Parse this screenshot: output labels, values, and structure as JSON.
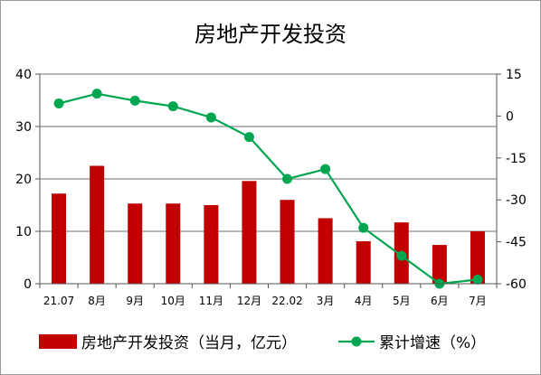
{
  "chart_data": {
    "type": "bar+line",
    "title": "房地产开发投资",
    "categories": [
      "21.07",
      "8月",
      "9月",
      "10月",
      "11月",
      "12月",
      "22.02",
      "3月",
      "4月",
      "5月",
      "6月",
      "7月"
    ],
    "series": [
      {
        "name": "房地产开发投资（当月，亿元）",
        "kind": "bar",
        "axis": "left",
        "color": "#C00000",
        "values": [
          17.2,
          22.5,
          15.3,
          15.3,
          15.0,
          19.6,
          16.0,
          12.5,
          8.1,
          11.7,
          7.4,
          10.0
        ]
      },
      {
        "name": "累计增速（%）",
        "kind": "line",
        "axis": "right",
        "color": "#00A650",
        "values": [
          4.5,
          8.0,
          5.5,
          3.5,
          -0.5,
          -7.5,
          -22.5,
          -19.0,
          -40.0,
          -50.0,
          -60.0,
          -58.5
        ]
      }
    ],
    "left_axis": {
      "ylim": [
        0,
        40
      ],
      "ticks": [
        0,
        10,
        20,
        30,
        40
      ]
    },
    "right_axis": {
      "ylim": [
        -60,
        15
      ],
      "ticks": [
        15,
        0,
        -15,
        -30,
        -45,
        -60
      ]
    },
    "gridlines": true,
    "legend_position": "bottom"
  }
}
